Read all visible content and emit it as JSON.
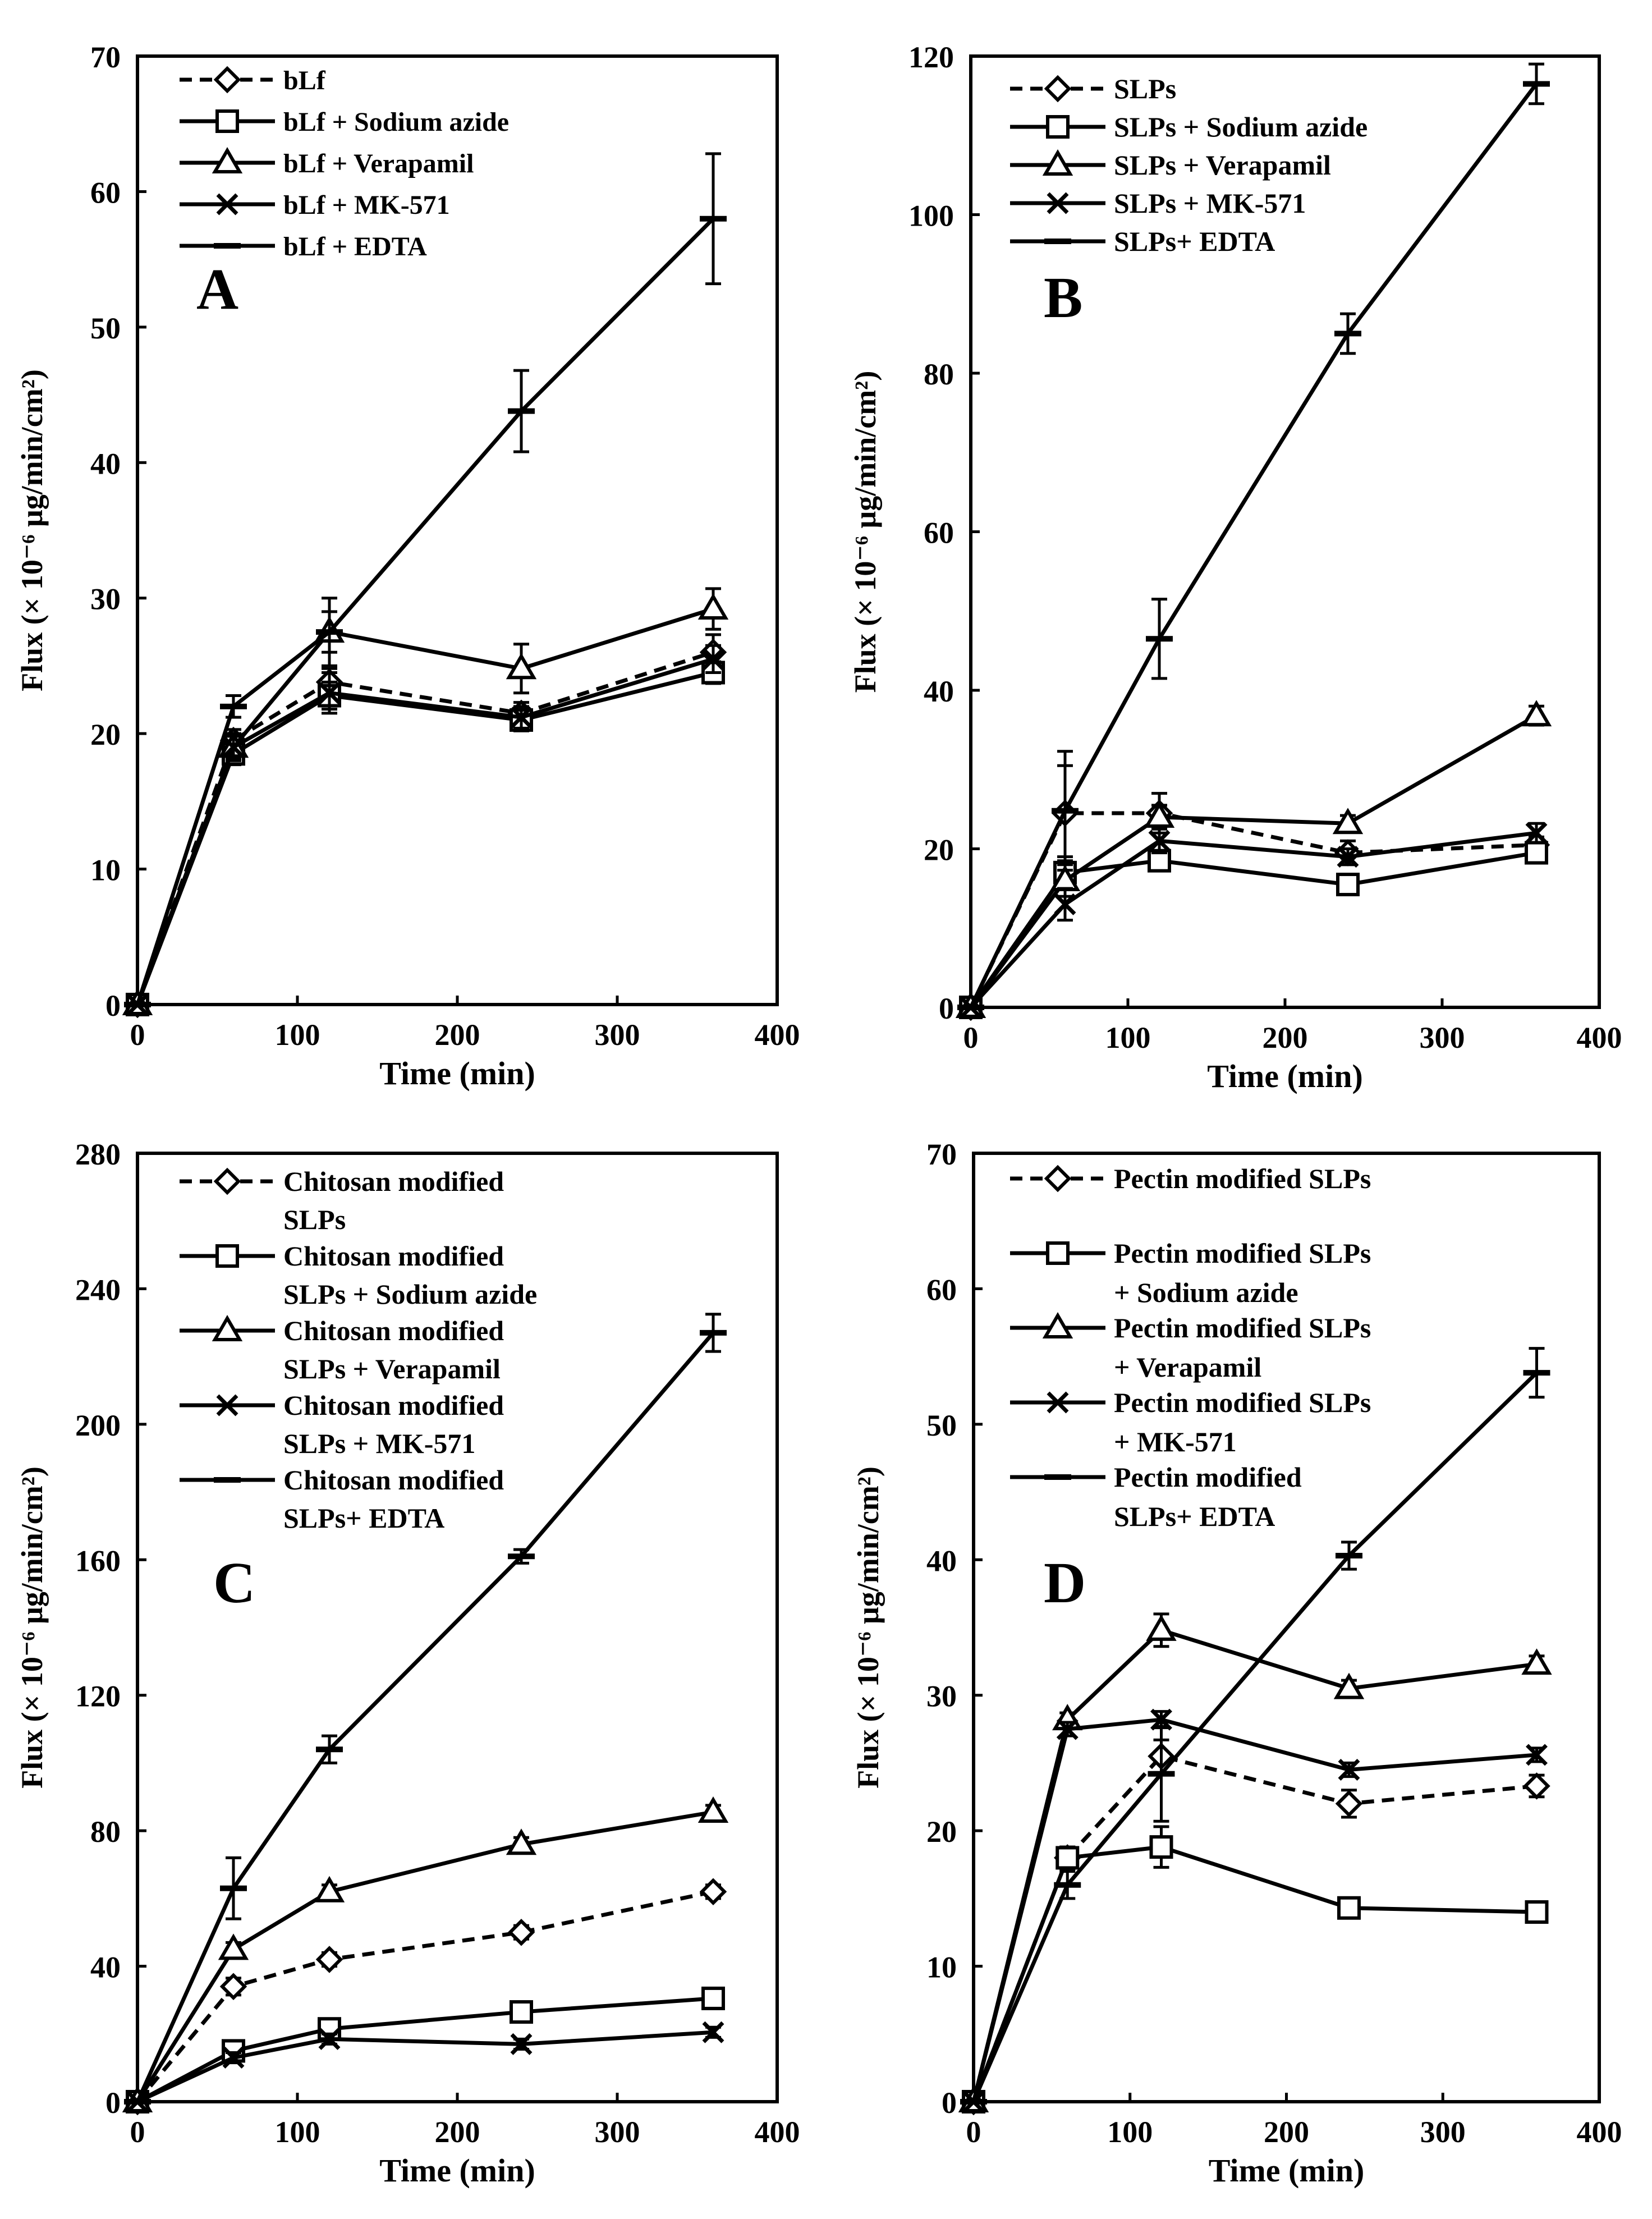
{
  "chart_data": [
    {
      "type": "line",
      "panel_label": "A",
      "xlabel": "Time (min)",
      "ylabel": "Flux (× 10⁻⁶ μg/min/cm²)",
      "xlim": [
        0,
        400
      ],
      "ylim": [
        0,
        70
      ],
      "xticks": [
        0,
        100,
        200,
        300,
        400
      ],
      "yticks": [
        0,
        10,
        20,
        30,
        40,
        50,
        60,
        70
      ],
      "x": [
        0,
        60,
        120,
        240,
        360
      ],
      "series": [
        {
          "name": "bLf",
          "legend_lines": [
            "bLf"
          ],
          "marker": "diamond",
          "dashed": true,
          "values": [
            0,
            19.5,
            23.8,
            21.5,
            26
          ],
          "err": [
            0,
            0.8,
            1.0,
            0.8,
            1.3
          ]
        },
        {
          "name": "bLf + Sodium azide",
          "legend_lines": [
            "bLf + Sodium azide"
          ],
          "marker": "square",
          "dashed": false,
          "values": [
            0,
            18.5,
            22.8,
            21,
            24.5
          ],
          "err": [
            0,
            0.8,
            1.0,
            0.8,
            0.8
          ]
        },
        {
          "name": "bLf + Verapamil",
          "legend_lines": [
            "bLf + Verapamil"
          ],
          "marker": "triangle",
          "dashed": false,
          "values": [
            0,
            19,
            27.5,
            24.8,
            29.2
          ],
          "err": [
            0,
            1.0,
            2.5,
            1.8,
            1.5
          ]
        },
        {
          "name": "bLf + MK-571",
          "legend_lines": [
            "bLf + MK-571"
          ],
          "marker": "x",
          "dashed": false,
          "values": [
            0,
            19,
            23,
            21.2,
            25.5
          ],
          "err": [
            0,
            0.8,
            1.5,
            0.8,
            1.0
          ]
        },
        {
          "name": "bLf + EDTA",
          "legend_lines": [
            "bLf + EDTA"
          ],
          "marker": "dash",
          "dashed": false,
          "values": [
            0,
            22,
            27.5,
            43.8,
            58
          ],
          "err": [
            0,
            0.8,
            1.5,
            3.0,
            4.8
          ]
        }
      ]
    },
    {
      "type": "line",
      "panel_label": "B",
      "xlabel": "Time (min)",
      "ylabel": "Flux (× 10⁻⁶ μg/min/cm²)",
      "xlim": [
        0,
        400
      ],
      "ylim": [
        0,
        120
      ],
      "xticks": [
        0,
        100,
        200,
        300,
        400
      ],
      "yticks": [
        0,
        20,
        40,
        60,
        80,
        100,
        120
      ],
      "x": [
        0,
        60,
        120,
        240,
        360
      ],
      "series": [
        {
          "name": "SLPs",
          "legend_lines": [
            "SLPs"
          ],
          "marker": "diamond",
          "dashed": true,
          "values": [
            0,
            24.5,
            24.5,
            19.5,
            20.5
          ],
          "err": [
            0,
            6.0,
            2.5,
            1.5,
            1.0
          ]
        },
        {
          "name": "SLPs + Sodium azide",
          "legend_lines": [
            "SLPs + Sodium azide"
          ],
          "marker": "square",
          "dashed": false,
          "values": [
            0,
            17,
            18.5,
            15.5,
            19.5
          ],
          "err": [
            0,
            2.0,
            1.2,
            1.0,
            1.0
          ]
        },
        {
          "name": "SLPs + Verapamil",
          "legend_lines": [
            "SLPs + Verapamil"
          ],
          "marker": "triangle",
          "dashed": false,
          "values": [
            0,
            16,
            24,
            23.2,
            36.8
          ],
          "err": [
            0,
            2.0,
            1.5,
            1.0,
            1.2
          ]
        },
        {
          "name": "SLPs + MK-571",
          "legend_lines": [
            "SLPs + MK-571"
          ],
          "marker": "x",
          "dashed": false,
          "values": [
            0,
            13,
            21,
            19,
            22
          ],
          "err": [
            0,
            2.0,
            1.5,
            1.0,
            1.2
          ]
        },
        {
          "name": "SLPs+ EDTA",
          "legend_lines": [
            "SLPs+ EDTA"
          ],
          "marker": "dash",
          "dashed": false,
          "values": [
            0,
            24.8,
            46.5,
            85,
            116.5
          ],
          "err": [
            0,
            7.5,
            5.0,
            2.5,
            2.5
          ]
        }
      ]
    },
    {
      "type": "line",
      "panel_label": "C",
      "xlabel": "Time (min)",
      "ylabel": "Flux (× 10⁻⁶ μg/min/cm²)",
      "xlim": [
        0,
        400
      ],
      "ylim": [
        0,
        280
      ],
      "xticks": [
        0,
        100,
        200,
        300,
        400
      ],
      "yticks": [
        0,
        40,
        80,
        120,
        160,
        200,
        240,
        280
      ],
      "x": [
        0,
        60,
        120,
        240,
        360
      ],
      "series": [
        {
          "name": "Chitosan modified SLPs",
          "legend_lines": [
            "Chitosan modified",
            "SLPs"
          ],
          "marker": "diamond",
          "dashed": true,
          "values": [
            0,
            34,
            42,
            50,
            62
          ],
          "err": [
            0,
            2.5,
            2.0,
            2.0,
            2.0
          ]
        },
        {
          "name": "Chitosan modified SLPs + Sodium azide",
          "legend_lines": [
            "Chitosan modified",
            "SLPs + Sodium azide"
          ],
          "marker": "square",
          "dashed": false,
          "values": [
            0,
            15,
            21.5,
            26.5,
            30.5
          ],
          "err": [
            0,
            2.0,
            2.0,
            2.5,
            2.0
          ]
        },
        {
          "name": "Chitosan modified SLPs + Verapamil",
          "legend_lines": [
            "Chitosan modified",
            "SLPs + Verapamil"
          ],
          "marker": "triangle",
          "dashed": false,
          "values": [
            0,
            45,
            62,
            76,
            85.5
          ],
          "err": [
            0,
            2.0,
            2.0,
            2.0,
            2.0
          ]
        },
        {
          "name": "Chitosan modified SLPs + MK-571",
          "legend_lines": [
            "Chitosan modified",
            "SLPs + MK-571"
          ],
          "marker": "x",
          "dashed": false,
          "values": [
            0,
            13,
            18.5,
            17,
            20.5
          ],
          "err": [
            0,
            1.5,
            1.5,
            1.5,
            1.5
          ]
        },
        {
          "name": "Chitosan modified SLPs+ EDTA",
          "legend_lines": [
            "Chitosan modified",
            "SLPs+ EDTA"
          ],
          "marker": "dash",
          "dashed": false,
          "values": [
            0,
            63,
            104,
            161,
            227
          ],
          "err": [
            0,
            9.0,
            4.0,
            2.0,
            5.5
          ]
        }
      ]
    },
    {
      "type": "line",
      "panel_label": "D",
      "xlabel": "Time (min)",
      "ylabel": "Flux (× 10⁻⁶ μg/min/cm²)",
      "xlim": [
        0,
        400
      ],
      "ylim": [
        0,
        70
      ],
      "xticks": [
        0,
        100,
        200,
        300,
        400
      ],
      "yticks": [
        0,
        10,
        20,
        30,
        40,
        50,
        60,
        70
      ],
      "x": [
        0,
        60,
        120,
        240,
        360
      ],
      "series": [
        {
          "name": "Pectin modified SLPs",
          "legend_lines": [
            "Pectin modified SLPs"
          ],
          "marker": "diamond",
          "dashed": true,
          "values": [
            0,
            18,
            25.5,
            22,
            23.3
          ],
          "err": [
            0,
            0.8,
            1.2,
            1.0,
            0.8
          ]
        },
        {
          "name": "Pectin modified SLPs + Sodium azide",
          "legend_lines": [
            "Pectin modified SLPs",
            "+ Sodium azide"
          ],
          "marker": "square",
          "dashed": false,
          "values": [
            0,
            18,
            18.8,
            14.3,
            14
          ],
          "err": [
            0,
            0.8,
            1.5,
            0.6,
            0.5
          ]
        },
        {
          "name": "Pectin modified SLPs + Verapamil",
          "legend_lines": [
            "Pectin modified SLPs",
            "+ Verapamil"
          ],
          "marker": "triangle",
          "dashed": false,
          "values": [
            0,
            28.2,
            34.8,
            30.5,
            32.3
          ],
          "err": [
            0,
            0.5,
            1.2,
            0.6,
            0.6
          ]
        },
        {
          "name": "Pectin modified SLPs + MK-571",
          "legend_lines": [
            "Pectin modified SLPs",
            "+ MK-571"
          ],
          "marker": "x",
          "dashed": false,
          "values": [
            0,
            27.5,
            28.2,
            24.5,
            25.6
          ],
          "err": [
            0,
            0.5,
            0.6,
            0.5,
            0.5
          ]
        },
        {
          "name": "Pectin modified SLPs+ EDTA",
          "legend_lines": [
            "Pectin modified",
            "SLPs+ EDTA"
          ],
          "marker": "dash",
          "dashed": false,
          "values": [
            0,
            16,
            24.2,
            40.3,
            53.8
          ],
          "err": [
            0,
            1.0,
            3.5,
            1.0,
            1.8
          ]
        }
      ]
    }
  ]
}
